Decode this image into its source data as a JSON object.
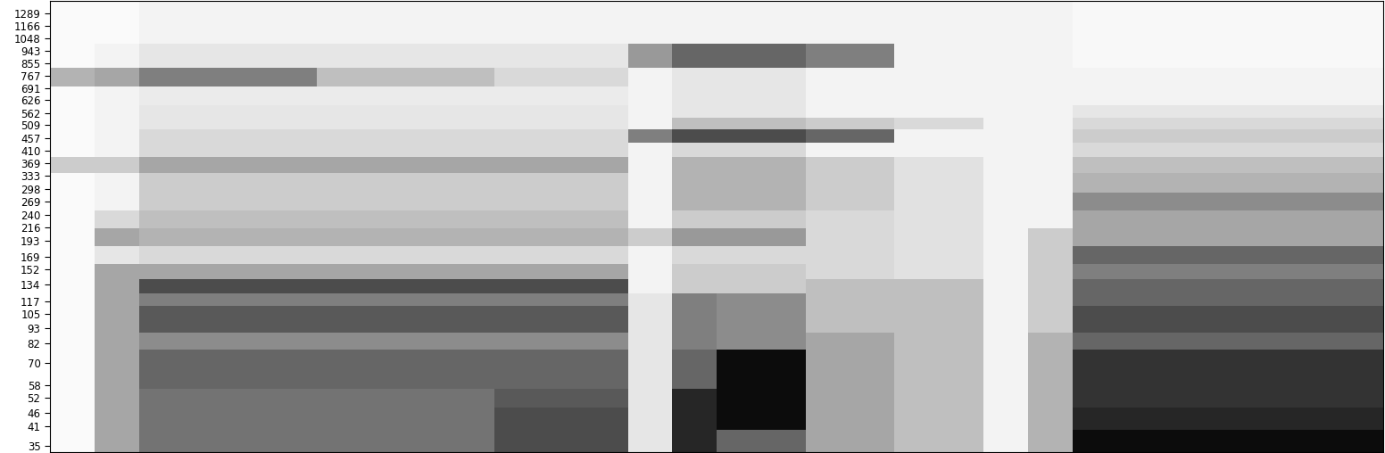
{
  "chart_data": {
    "type": "heatmap",
    "log": "y",
    "tick_labels": "y",
    "xlim": [
      0,
      30
    ],
    "ylim": [
      33,
      1440
    ],
    "yticks": [
      35,
      41,
      46,
      52,
      58,
      70,
      82,
      93,
      105,
      117,
      134,
      152,
      169,
      193,
      216,
      240,
      269,
      298,
      333,
      369,
      410,
      457,
      509,
      562,
      626,
      691,
      767,
      855,
      943,
      1048,
      1166,
      1289
    ],
    "y_edges": [
      33,
      40,
      48,
      56,
      66,
      78,
      90,
      100,
      112,
      125,
      140,
      160,
      185,
      215,
      250,
      290,
      340,
      390,
      440,
      490,
      540,
      600,
      700,
      820,
      1000,
      1440
    ],
    "color_range": [
      0,
      1
    ],
    "color": "gray_r",
    "cells": [
      [
        0.02,
        0.35,
        0.55,
        0.55,
        0.55,
        0.55,
        0.55,
        0.55,
        0.55,
        0.55,
        0.7,
        0.7,
        0.7,
        0.1,
        0.85,
        0.6,
        0.6,
        0.35,
        0.35,
        0.25,
        0.25,
        0.05,
        0.3,
        0.95,
        0.95,
        0.95,
        0.95,
        0.95,
        0.95,
        0.95
      ],
      [
        0.02,
        0.35,
        0.55,
        0.55,
        0.55,
        0.55,
        0.55,
        0.55,
        0.55,
        0.55,
        0.7,
        0.7,
        0.7,
        0.1,
        0.85,
        0.95,
        0.95,
        0.35,
        0.35,
        0.25,
        0.25,
        0.05,
        0.3,
        0.85,
        0.85,
        0.85,
        0.85,
        0.85,
        0.85,
        0.85
      ],
      [
        0.02,
        0.35,
        0.55,
        0.55,
        0.55,
        0.55,
        0.55,
        0.55,
        0.55,
        0.55,
        0.65,
        0.65,
        0.65,
        0.1,
        0.85,
        0.95,
        0.95,
        0.35,
        0.35,
        0.25,
        0.25,
        0.05,
        0.3,
        0.8,
        0.8,
        0.8,
        0.8,
        0.8,
        0.8,
        0.8
      ],
      [
        0.02,
        0.35,
        0.6,
        0.6,
        0.6,
        0.6,
        0.6,
        0.6,
        0.6,
        0.6,
        0.6,
        0.6,
        0.6,
        0.1,
        0.6,
        0.95,
        0.95,
        0.35,
        0.35,
        0.25,
        0.25,
        0.05,
        0.3,
        0.8,
        0.8,
        0.8,
        0.8,
        0.8,
        0.8,
        0.8
      ],
      [
        0.02,
        0.35,
        0.6,
        0.6,
        0.6,
        0.6,
        0.6,
        0.6,
        0.6,
        0.6,
        0.6,
        0.6,
        0.6,
        0.1,
        0.6,
        0.95,
        0.95,
        0.35,
        0.35,
        0.25,
        0.25,
        0.05,
        0.3,
        0.8,
        0.8,
        0.8,
        0.8,
        0.8,
        0.8,
        0.8
      ],
      [
        0.02,
        0.35,
        0.45,
        0.45,
        0.45,
        0.45,
        0.45,
        0.45,
        0.45,
        0.45,
        0.45,
        0.45,
        0.45,
        0.1,
        0.5,
        0.45,
        0.45,
        0.35,
        0.35,
        0.25,
        0.25,
        0.05,
        0.3,
        0.6,
        0.6,
        0.6,
        0.6,
        0.6,
        0.6,
        0.6
      ],
      [
        0.02,
        0.35,
        0.65,
        0.65,
        0.65,
        0.65,
        0.65,
        0.65,
        0.65,
        0.65,
        0.65,
        0.65,
        0.65,
        0.1,
        0.5,
        0.45,
        0.45,
        0.25,
        0.25,
        0.25,
        0.25,
        0.05,
        0.2,
        0.7,
        0.7,
        0.7,
        0.7,
        0.7,
        0.7,
        0.7
      ],
      [
        0.02,
        0.35,
        0.65,
        0.65,
        0.65,
        0.65,
        0.65,
        0.65,
        0.65,
        0.65,
        0.65,
        0.65,
        0.65,
        0.1,
        0.5,
        0.45,
        0.45,
        0.25,
        0.25,
        0.25,
        0.25,
        0.05,
        0.2,
        0.7,
        0.7,
        0.7,
        0.7,
        0.7,
        0.7,
        0.7
      ],
      [
        0.02,
        0.35,
        0.5,
        0.5,
        0.5,
        0.5,
        0.5,
        0.5,
        0.5,
        0.5,
        0.5,
        0.5,
        0.5,
        0.1,
        0.5,
        0.45,
        0.45,
        0.25,
        0.25,
        0.25,
        0.25,
        0.05,
        0.2,
        0.6,
        0.6,
        0.6,
        0.6,
        0.6,
        0.6,
        0.6
      ],
      [
        0.02,
        0.35,
        0.7,
        0.7,
        0.7,
        0.7,
        0.7,
        0.7,
        0.7,
        0.7,
        0.7,
        0.7,
        0.7,
        0.05,
        0.2,
        0.2,
        0.2,
        0.25,
        0.25,
        0.25,
        0.25,
        0.05,
        0.2,
        0.6,
        0.6,
        0.6,
        0.6,
        0.6,
        0.6,
        0.6
      ],
      [
        0.02,
        0.35,
        0.35,
        0.35,
        0.35,
        0.35,
        0.35,
        0.35,
        0.35,
        0.35,
        0.35,
        0.35,
        0.35,
        0.05,
        0.2,
        0.2,
        0.2,
        0.15,
        0.15,
        0.12,
        0.12,
        0.05,
        0.2,
        0.5,
        0.5,
        0.5,
        0.5,
        0.5,
        0.5,
        0.5
      ],
      [
        0.02,
        0.1,
        0.15,
        0.15,
        0.15,
        0.15,
        0.15,
        0.15,
        0.15,
        0.15,
        0.15,
        0.15,
        0.15,
        0.05,
        0.15,
        0.15,
        0.15,
        0.15,
        0.15,
        0.12,
        0.12,
        0.05,
        0.2,
        0.6,
        0.6,
        0.6,
        0.6,
        0.6,
        0.6,
        0.6
      ],
      [
        0.02,
        0.35,
        0.3,
        0.3,
        0.3,
        0.3,
        0.3,
        0.3,
        0.3,
        0.3,
        0.3,
        0.3,
        0.3,
        0.2,
        0.4,
        0.4,
        0.4,
        0.15,
        0.15,
        0.12,
        0.12,
        0.05,
        0.2,
        0.35,
        0.35,
        0.35,
        0.35,
        0.35,
        0.35,
        0.35
      ],
      [
        0.02,
        0.15,
        0.25,
        0.25,
        0.25,
        0.25,
        0.25,
        0.25,
        0.25,
        0.25,
        0.25,
        0.25,
        0.25,
        0.05,
        0.2,
        0.2,
        0.2,
        0.15,
        0.15,
        0.12,
        0.12,
        0.05,
        0.05,
        0.35,
        0.35,
        0.35,
        0.35,
        0.35,
        0.35,
        0.35
      ],
      [
        0.02,
        0.05,
        0.2,
        0.2,
        0.2,
        0.2,
        0.2,
        0.2,
        0.2,
        0.2,
        0.2,
        0.2,
        0.2,
        0.05,
        0.3,
        0.3,
        0.3,
        0.2,
        0.2,
        0.12,
        0.12,
        0.05,
        0.05,
        0.45,
        0.45,
        0.45,
        0.45,
        0.45,
        0.45,
        0.45
      ],
      [
        0.02,
        0.05,
        0.2,
        0.2,
        0.2,
        0.2,
        0.2,
        0.2,
        0.2,
        0.2,
        0.2,
        0.2,
        0.2,
        0.05,
        0.3,
        0.3,
        0.3,
        0.2,
        0.2,
        0.12,
        0.12,
        0.05,
        0.05,
        0.3,
        0.3,
        0.3,
        0.3,
        0.3,
        0.3,
        0.3
      ],
      [
        0.2,
        0.2,
        0.35,
        0.35,
        0.35,
        0.35,
        0.35,
        0.35,
        0.35,
        0.35,
        0.35,
        0.35,
        0.35,
        0.05,
        0.3,
        0.3,
        0.3,
        0.2,
        0.2,
        0.12,
        0.12,
        0.05,
        0.05,
        0.25,
        0.25,
        0.25,
        0.25,
        0.25,
        0.25,
        0.25
      ],
      [
        0.02,
        0.05,
        0.15,
        0.15,
        0.15,
        0.15,
        0.15,
        0.15,
        0.15,
        0.15,
        0.15,
        0.15,
        0.15,
        0.05,
        0.15,
        0.15,
        0.15,
        0.05,
        0.05,
        0.05,
        0.05,
        0.05,
        0.05,
        0.15,
        0.15,
        0.15,
        0.15,
        0.15,
        0.15,
        0.15
      ],
      [
        0.02,
        0.05,
        0.15,
        0.15,
        0.15,
        0.15,
        0.15,
        0.15,
        0.15,
        0.15,
        0.15,
        0.15,
        0.15,
        0.5,
        0.7,
        0.7,
        0.7,
        0.6,
        0.6,
        0.05,
        0.05,
        0.05,
        0.05,
        0.2,
        0.2,
        0.2,
        0.2,
        0.2,
        0.2,
        0.2
      ],
      [
        0.02,
        0.05,
        0.1,
        0.1,
        0.1,
        0.1,
        0.1,
        0.1,
        0.1,
        0.1,
        0.1,
        0.1,
        0.1,
        0.05,
        0.25,
        0.25,
        0.25,
        0.2,
        0.2,
        0.15,
        0.15,
        0.05,
        0.05,
        0.15,
        0.15,
        0.15,
        0.15,
        0.15,
        0.15,
        0.15
      ],
      [
        0.02,
        0.05,
        0.1,
        0.1,
        0.1,
        0.1,
        0.1,
        0.1,
        0.1,
        0.1,
        0.1,
        0.1,
        0.1,
        0.05,
        0.1,
        0.1,
        0.1,
        0.05,
        0.05,
        0.05,
        0.05,
        0.05,
        0.05,
        0.1,
        0.1,
        0.1,
        0.1,
        0.1,
        0.1,
        0.1
      ],
      [
        0.02,
        0.05,
        0.08,
        0.08,
        0.08,
        0.08,
        0.08,
        0.08,
        0.08,
        0.08,
        0.08,
        0.08,
        0.08,
        0.05,
        0.1,
        0.1,
        0.1,
        0.05,
        0.05,
        0.05,
        0.05,
        0.05,
        0.05,
        0.05,
        0.05,
        0.05,
        0.05,
        0.05,
        0.05,
        0.05
      ],
      [
        0.3,
        0.35,
        0.5,
        0.5,
        0.5,
        0.5,
        0.25,
        0.25,
        0.25,
        0.25,
        0.15,
        0.15,
        0.15,
        0.05,
        0.1,
        0.1,
        0.1,
        0.05,
        0.05,
        0.05,
        0.05,
        0.05,
        0.05,
        0.05,
        0.05,
        0.05,
        0.05,
        0.05,
        0.05,
        0.05
      ],
      [
        0.02,
        0.05,
        0.1,
        0.1,
        0.1,
        0.1,
        0.1,
        0.1,
        0.1,
        0.1,
        0.1,
        0.1,
        0.1,
        0.4,
        0.6,
        0.6,
        0.6,
        0.5,
        0.5,
        0.05,
        0.05,
        0.05,
        0.05,
        0.03,
        0.03,
        0.03,
        0.03,
        0.03,
        0.03,
        0.03
      ],
      [
        0.02,
        0.02,
        0.05,
        0.05,
        0.05,
        0.05,
        0.05,
        0.05,
        0.05,
        0.05,
        0.05,
        0.05,
        0.05,
        0.05,
        0.05,
        0.05,
        0.05,
        0.05,
        0.05,
        0.05,
        0.05,
        0.05,
        0.05,
        0.03,
        0.03,
        0.03,
        0.03,
        0.03,
        0.03,
        0.03
      ]
    ]
  }
}
